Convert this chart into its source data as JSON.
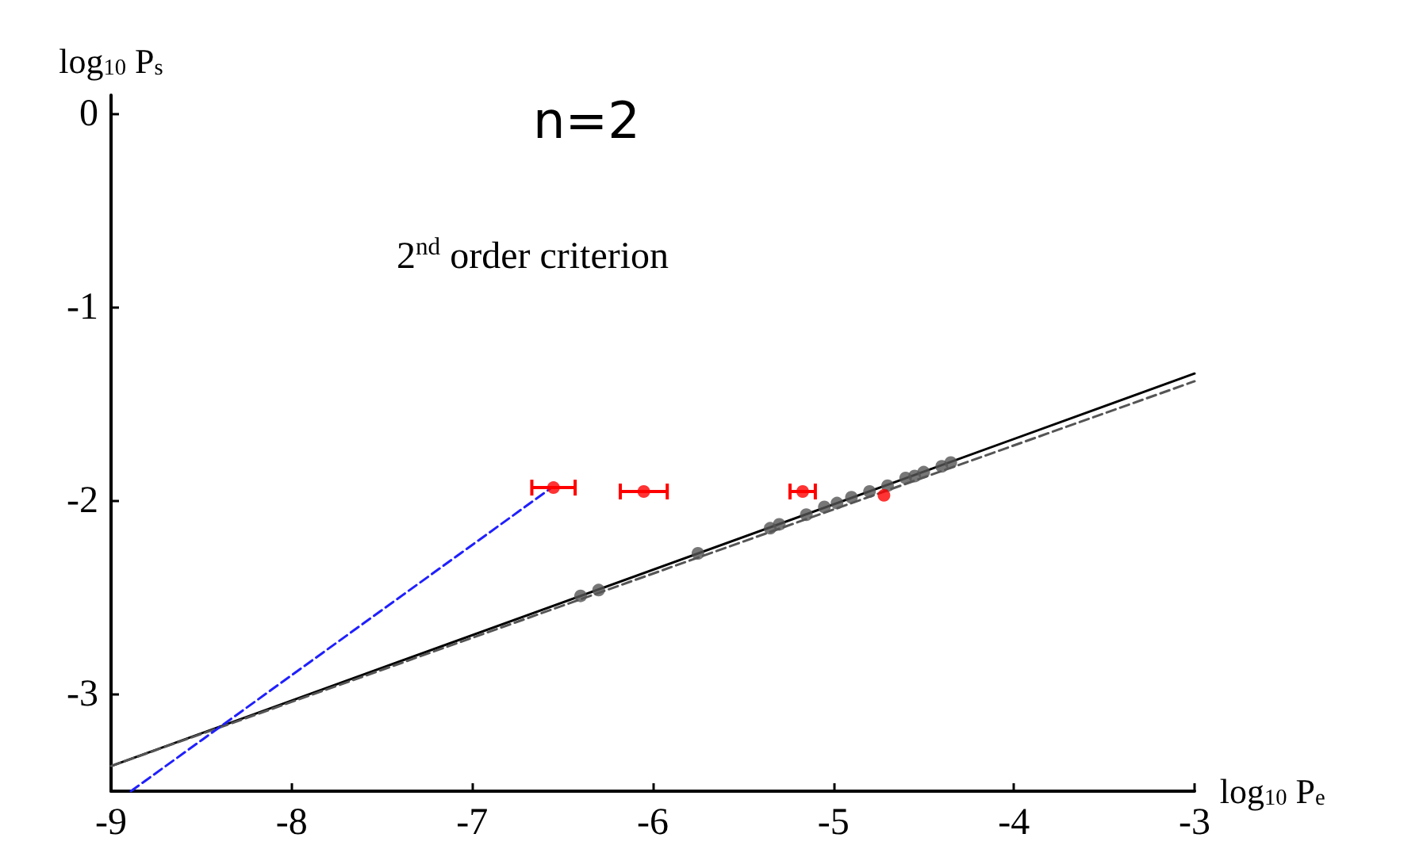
{
  "chart_data": {
    "type": "scatter",
    "xlabel": "log$_{10}$ P$_{e}$",
    "ylabel": "log$_{10}$ P$_{s}$",
    "annotations": [
      {
        "text": "n=2"
      },
      {
        "text": "2$^{nd}$ order criterion"
      }
    ],
    "xlim": [
      -9,
      -3
    ],
    "xticks": [
      -9,
      -8,
      -7,
      -6,
      -5,
      -4,
      -3
    ],
    "ylim": [
      -3.5,
      0.1
    ],
    "yticks": [
      -3,
      -2,
      -1,
      0
    ],
    "grid": false,
    "series": [
      {
        "type": "line",
        "color": "#000000",
        "line_style": "solid",
        "marker": "none",
        "x": [
          -9,
          -3
        ],
        "values": [
          -3.37,
          -1.34
        ]
      },
      {
        "type": "line",
        "color": "#555555",
        "line_style": "dashed",
        "marker": "none",
        "x": [
          -9,
          -3
        ],
        "values": [
          -3.37,
          -1.38
        ]
      },
      {
        "type": "line",
        "color": "#1f1fff",
        "line_style": "dashed",
        "marker": "none",
        "x": [
          -8.89,
          -6.56
        ],
        "values": [
          -3.5,
          -1.93
        ]
      },
      {
        "color": "#555555",
        "marker": "circle",
        "x": [
          -6.4,
          -6.3,
          -5.75,
          -5.35,
          -5.3,
          -5.15,
          -5.05,
          -4.98,
          -4.9,
          -4.8,
          -4.7,
          -4.6,
          -4.55,
          -4.5,
          -4.4,
          -4.35
        ],
        "values": [
          -2.49,
          -2.46,
          -2.27,
          -2.14,
          -2.12,
          -2.07,
          -2.03,
          -2.01,
          -1.98,
          -1.95,
          -1.92,
          -1.88,
          -1.87,
          -1.85,
          -1.82,
          -1.8
        ]
      },
      {
        "color": "#ff0000",
        "marker": "circle",
        "x": [
          -6.55,
          -6.05,
          -5.17,
          -4.72
        ],
        "values": [
          -1.93,
          -1.95,
          -1.95,
          -1.97
        ],
        "xerrors": [
          0.12,
          0.13,
          0.07,
          null
        ]
      }
    ]
  }
}
